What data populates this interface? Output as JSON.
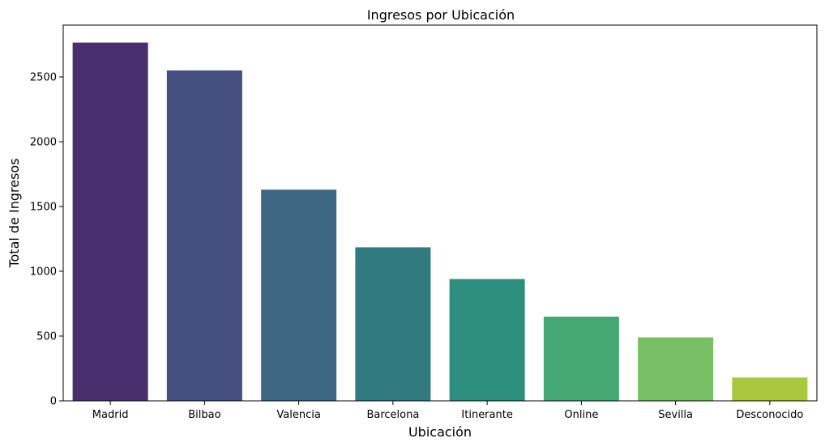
{
  "chart_data": {
    "type": "bar",
    "title": "Ingresos por Ubicación",
    "xlabel": "Ubicación",
    "ylabel": "Total de Ingresos",
    "categories": [
      "Madrid",
      "Bilbao",
      "Valencia",
      "Barcelona",
      "Itinerante",
      "Online",
      "Sevilla",
      "Desconocido"
    ],
    "values": [
      2765,
      2550,
      1630,
      1185,
      940,
      650,
      490,
      180
    ],
    "colors": [
      "#4a2f6e",
      "#455081",
      "#3e6783",
      "#317a80",
      "#2e8f7e",
      "#45a874",
      "#78be65",
      "#a9c73f"
    ],
    "ylim": [
      0,
      2900
    ],
    "yticks": [
      0,
      500,
      1000,
      1500,
      2000,
      2500
    ],
    "grid": false,
    "legend": "none"
  }
}
